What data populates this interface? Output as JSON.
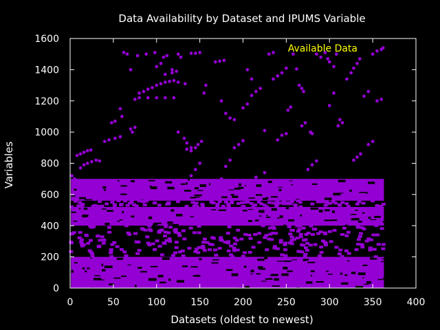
{
  "chart_data": {
    "type": "scatter",
    "title": "Data Availability by Dataset and IPUMS Variable",
    "xlabel": "Datasets (oldest to newest)",
    "ylabel": "Variables",
    "xlim": [
      0,
      400
    ],
    "ylim": [
      0,
      1600
    ],
    "xticks": [
      0,
      50,
      100,
      150,
      200,
      250,
      300,
      350,
      400
    ],
    "yticks": [
      0,
      200,
      400,
      600,
      800,
      1000,
      1200,
      1400,
      1600
    ],
    "legend": {
      "label": "Available Data",
      "position": "top-right"
    },
    "colors": {
      "points": "#9400d3",
      "legend_text": "#ffff00",
      "axes": "#ffffff",
      "background": "#000000"
    },
    "grid": false,
    "series": [
      {
        "name": "Available Data",
        "dense_regions": [
          {
            "x": [
              1,
              363
            ],
            "y": [
              0,
              200
            ]
          },
          {
            "x": [
              1,
              363
            ],
            "y": [
              400,
              520
            ]
          },
          {
            "x": [
              1,
              363
            ],
            "y": [
              560,
              700
            ]
          }
        ],
        "points": [
          [
            2,
            720
          ],
          [
            5,
            700
          ],
          [
            8,
            690
          ],
          [
            12,
            770
          ],
          [
            16,
            790
          ],
          [
            20,
            800
          ],
          [
            25,
            810
          ],
          [
            30,
            820
          ],
          [
            34,
            815
          ],
          [
            8,
            850
          ],
          [
            12,
            860
          ],
          [
            16,
            870
          ],
          [
            20,
            880
          ],
          [
            24,
            885
          ],
          [
            40,
            940
          ],
          [
            45,
            950
          ],
          [
            52,
            960
          ],
          [
            58,
            970
          ],
          [
            48,
            1060
          ],
          [
            52,
            1070
          ],
          [
            58,
            1150
          ],
          [
            60,
            1100
          ],
          [
            62,
            1510
          ],
          [
            66,
            1500
          ],
          [
            70,
            1020
          ],
          [
            72,
            1000
          ],
          [
            75,
            1030
          ],
          [
            75,
            1210
          ],
          [
            80,
            1250
          ],
          [
            85,
            1260
          ],
          [
            90,
            1275
          ],
          [
            95,
            1285
          ],
          [
            100,
            1300
          ],
          [
            105,
            1310
          ],
          [
            110,
            1320
          ],
          [
            115,
            1325
          ],
          [
            120,
            1330
          ],
          [
            125,
            1320
          ],
          [
            80,
            1220
          ],
          [
            90,
            1220
          ],
          [
            100,
            1220
          ],
          [
            110,
            1220
          ],
          [
            120,
            1220
          ],
          [
            70,
            1400
          ],
          [
            78,
            1490
          ],
          [
            88,
            1500
          ],
          [
            98,
            1510
          ],
          [
            100,
            1420
          ],
          [
            105,
            1440
          ],
          [
            108,
            1480
          ],
          [
            112,
            1490
          ],
          [
            118,
            1400
          ],
          [
            125,
            1500
          ],
          [
            128,
            1480
          ],
          [
            110,
            1370
          ],
          [
            118,
            1380
          ],
          [
            123,
            1390
          ],
          [
            125,
            1000
          ],
          [
            132,
            960
          ],
          [
            135,
            930
          ],
          [
            140,
            900
          ],
          [
            133,
            1310
          ],
          [
            140,
            1505
          ],
          [
            145,
            1505
          ],
          [
            150,
            1510
          ],
          [
            155,
            1250
          ],
          [
            157,
            1300
          ],
          [
            135,
            890
          ],
          [
            140,
            880
          ],
          [
            145,
            900
          ],
          [
            148,
            920
          ],
          [
            152,
            940
          ],
          [
            168,
            1450
          ],
          [
            173,
            1455
          ],
          [
            178,
            1460
          ],
          [
            175,
            1200
          ],
          [
            180,
            1120
          ],
          [
            185,
            1090
          ],
          [
            190,
            1080
          ],
          [
            190,
            900
          ],
          [
            195,
            920
          ],
          [
            200,
            945
          ],
          [
            205,
            1400
          ],
          [
            210,
            1340
          ],
          [
            200,
            1155
          ],
          [
            205,
            1180
          ],
          [
            210,
            1235
          ],
          [
            215,
            1260
          ],
          [
            220,
            1280
          ],
          [
            225,
            1010
          ],
          [
            230,
            1500
          ],
          [
            235,
            1510
          ],
          [
            240,
            950
          ],
          [
            245,
            980
          ],
          [
            250,
            990
          ],
          [
            252,
            1140
          ],
          [
            255,
            1160
          ],
          [
            235,
            1340
          ],
          [
            240,
            1360
          ],
          [
            245,
            1380
          ],
          [
            250,
            1410
          ],
          [
            258,
            1500
          ],
          [
            262,
            1405
          ],
          [
            265,
            1300
          ],
          [
            268,
            1280
          ],
          [
            270,
            1260
          ],
          [
            268,
            1040
          ],
          [
            272,
            1060
          ],
          [
            278,
            1000
          ],
          [
            280,
            990
          ],
          [
            275,
            760
          ],
          [
            280,
            790
          ],
          [
            285,
            815
          ],
          [
            285,
            1500
          ],
          [
            290,
            1480
          ],
          [
            295,
            1510
          ],
          [
            298,
            1470
          ],
          [
            300,
            1450
          ],
          [
            305,
            1420
          ],
          [
            308,
            1500
          ],
          [
            300,
            1170
          ],
          [
            305,
            1250
          ],
          [
            310,
            1040
          ],
          [
            312,
            1080
          ],
          [
            315,
            1060
          ],
          [
            320,
            1340
          ],
          [
            325,
            1380
          ],
          [
            328,
            1410
          ],
          [
            332,
            1440
          ],
          [
            335,
            1470
          ],
          [
            328,
            820
          ],
          [
            332,
            840
          ],
          [
            336,
            860
          ],
          [
            340,
            1230
          ],
          [
            345,
            1260
          ],
          [
            350,
            1500
          ],
          [
            355,
            1520
          ],
          [
            360,
            1530
          ],
          [
            362,
            1540
          ],
          [
            345,
            920
          ],
          [
            350,
            940
          ],
          [
            355,
            1200
          ],
          [
            360,
            1210
          ],
          [
            175,
            700
          ],
          [
            180,
            780
          ],
          [
            185,
            820
          ],
          [
            200,
            660
          ],
          [
            215,
            710
          ],
          [
            225,
            740
          ],
          [
            240,
            680
          ],
          [
            140,
            720
          ],
          [
            145,
            760
          ],
          [
            150,
            800
          ],
          [
            60,
            640
          ],
          [
            70,
            650
          ],
          [
            90,
            660
          ]
        ]
      }
    ]
  }
}
